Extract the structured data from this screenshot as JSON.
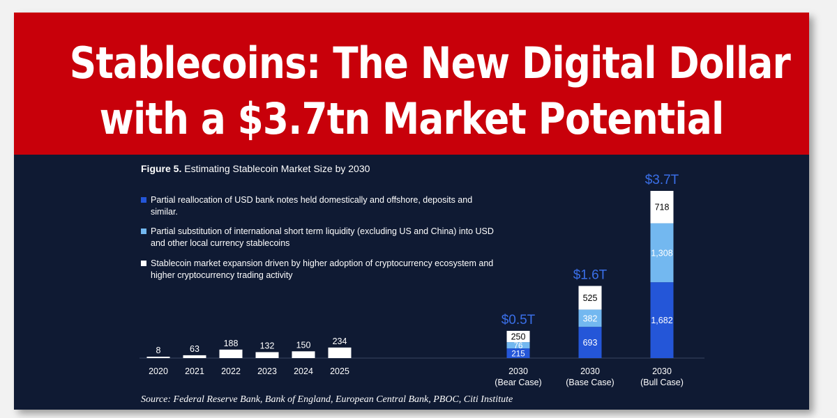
{
  "headline": {
    "line1": "Stablecoins: The New Digital Dollar",
    "line2": "with a $3.7tn Market Potential",
    "background_color": "#c8000a"
  },
  "figure": {
    "label": "Figure 5.",
    "title": "Estimating Stablecoin Market Size by 2030",
    "source": "Source: Federal Reserve Bank, Bank of England, European Central Bank, PBOC, Citi Institute",
    "background_color": "#0f1a33"
  },
  "legend": [
    {
      "text": "Partial reallocation of USD bank notes held domestically and offshore, deposits and similar.",
      "color": "#2456d8"
    },
    {
      "text": "Partial substitution of international short term liquidity (excluding US and China) into USD and other local currency stablecoins",
      "color": "#73b8f0"
    },
    {
      "text": "Stablecoin market expansion driven by higher adoption of cryptocurrency ecosystem and higher cryptocurrency trading activity",
      "color": "#ffffff"
    }
  ],
  "chart_data": {
    "type": "bar",
    "stacked": true,
    "unit": "$bn",
    "historical": {
      "categories": [
        "2020",
        "2021",
        "2022",
        "2023",
        "2024",
        "2025"
      ],
      "values": [
        8,
        63,
        188,
        132,
        150,
        234
      ],
      "color": "#ffffff"
    },
    "projections": [
      {
        "label_line1": "2030",
        "label_line2": "(Bear Case)",
        "total_label": "$0.5T",
        "values": [
          215,
          76,
          250
        ]
      },
      {
        "label_line1": "2030",
        "label_line2": "(Base Case)",
        "total_label": "$1.6T",
        "values": [
          693,
          382,
          525
        ]
      },
      {
        "label_line1": "2030",
        "label_line2": "(Bull Case)",
        "total_label": "$3.7T",
        "values": [
          1682,
          1308,
          718
        ]
      }
    ],
    "segment_colors": [
      "#2456d8",
      "#73b8f0",
      "#ffffff"
    ],
    "segment_label_colors": [
      "#ffffff",
      "#ffffff",
      "#000000"
    ],
    "total_label_color": "#3a6fe8"
  }
}
